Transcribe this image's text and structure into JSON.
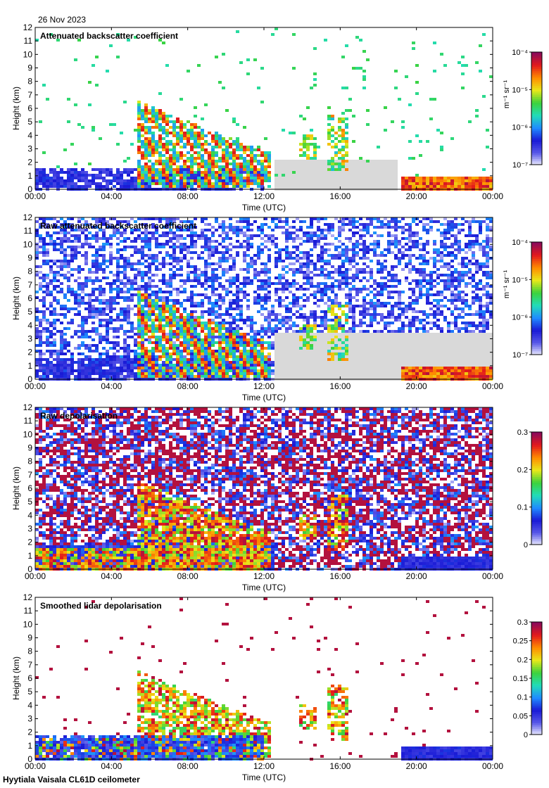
{
  "date": "26 Nov 2023",
  "footer": "Hyytiala Vaisala CL61D ceilometer",
  "colors": {
    "background": "#ffffff",
    "nodata": "#d9d9d9",
    "colormap": [
      "#f2f2ff",
      "#5858e8",
      "#1a1ad6",
      "#1f8cff",
      "#22ddb8",
      "#3cd23c",
      "#e8e81a",
      "#ff8c00",
      "#e31a1c",
      "#8b0a5a"
    ]
  },
  "chart_data": [
    {
      "type": "heatmap",
      "title": "Attenuated backscatter coefficient",
      "xlabel": "Time (UTC)",
      "ylabel": "Height (km)",
      "xticks": [
        "00:00",
        "04:00",
        "08:00",
        "12:00",
        "16:00",
        "20:00",
        "00:00"
      ],
      "xlim_hours": [
        0,
        24
      ],
      "ylim": [
        0,
        12
      ],
      "yticks": [
        "0",
        "1",
        "2",
        "3",
        "4",
        "5",
        "6",
        "7",
        "8",
        "9",
        "10",
        "11",
        "12"
      ],
      "colorbar": {
        "scale": "log",
        "range": [
          1e-07,
          0.0001
        ],
        "ticks": [
          "10⁻⁷",
          "10⁻⁶",
          "10⁻⁵",
          "10⁻⁴"
        ],
        "unit": "m⁻¹ sr⁻¹"
      }
    },
    {
      "type": "heatmap",
      "title": "Raw attenuated backscatter coefficient",
      "xlabel": "Time (UTC)",
      "ylabel": "Height (km)",
      "xticks": [
        "00:00",
        "04:00",
        "08:00",
        "12:00",
        "16:00",
        "20:00",
        "00:00"
      ],
      "xlim_hours": [
        0,
        24
      ],
      "ylim": [
        0,
        12
      ],
      "yticks": [
        "0",
        "1",
        "2",
        "3",
        "4",
        "5",
        "6",
        "7",
        "8",
        "9",
        "10",
        "11",
        "12"
      ],
      "colorbar": {
        "scale": "log",
        "range": [
          1e-07,
          0.0001
        ],
        "ticks": [
          "10⁻⁷",
          "10⁻⁶",
          "10⁻⁵",
          "10⁻⁴"
        ],
        "unit": "m⁻¹ sr⁻¹"
      }
    },
    {
      "type": "heatmap",
      "title": "Raw depolarisation",
      "xlabel": "Time (UTC)",
      "ylabel": "Height (km)",
      "xticks": [
        "00:00",
        "04:00",
        "08:00",
        "12:00",
        "16:00",
        "20:00",
        "00:00"
      ],
      "xlim_hours": [
        0,
        24
      ],
      "ylim": [
        0,
        12
      ],
      "yticks": [
        "0",
        "1",
        "2",
        "3",
        "4",
        "5",
        "6",
        "7",
        "8",
        "9",
        "10",
        "11",
        "12"
      ],
      "colorbar": {
        "scale": "linear",
        "range": [
          0,
          0.3
        ],
        "ticks": [
          "0",
          "0.1",
          "0.2",
          "0.3"
        ],
        "unit": ""
      }
    },
    {
      "type": "heatmap",
      "title": "Smoothed lidar depolarisation",
      "xlabel": "Time (UTC)",
      "ylabel": "Height (km)",
      "xticks": [
        "00:00",
        "04:00",
        "08:00",
        "12:00",
        "16:00",
        "20:00",
        "00:00"
      ],
      "xlim_hours": [
        0,
        24
      ],
      "ylim": [
        0,
        12
      ],
      "yticks": [
        "0",
        "1",
        "2",
        "3",
        "4",
        "5",
        "6",
        "7",
        "8",
        "9",
        "10",
        "11",
        "12"
      ],
      "colorbar": {
        "scale": "linear",
        "range": [
          0,
          0.3
        ],
        "ticks": [
          "0",
          "0.05",
          "0.1",
          "0.15",
          "0.2",
          "0.25",
          "0.3"
        ],
        "unit": ""
      }
    }
  ]
}
